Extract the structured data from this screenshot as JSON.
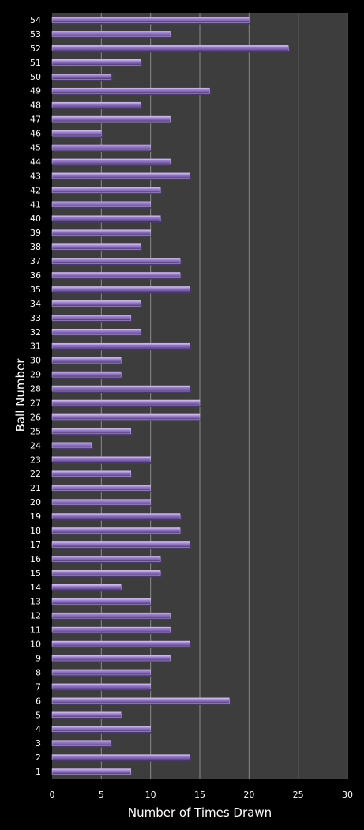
{
  "chart_data": {
    "type": "bar",
    "orientation": "horizontal",
    "title": "",
    "xlabel": "Number of Times Drawn",
    "ylabel": "Ball Number",
    "xlim": [
      0,
      30
    ],
    "xticks": [
      "0",
      "5",
      "10",
      "15",
      "20",
      "25",
      "30"
    ],
    "grid": "vertical",
    "legend": "none",
    "categories": [
      "1",
      "2",
      "3",
      "4",
      "5",
      "6",
      "7",
      "8",
      "9",
      "10",
      "11",
      "12",
      "13",
      "14",
      "15",
      "16",
      "17",
      "18",
      "19",
      "20",
      "21",
      "22",
      "23",
      "24",
      "25",
      "26",
      "27",
      "28",
      "29",
      "30",
      "31",
      "32",
      "33",
      "34",
      "35",
      "36",
      "37",
      "38",
      "39",
      "40",
      "41",
      "42",
      "43",
      "44",
      "45",
      "46",
      "47",
      "48",
      "49",
      "50",
      "51",
      "52",
      "53",
      "54"
    ],
    "values": [
      8,
      14,
      6,
      10,
      7,
      18,
      10,
      10,
      12,
      14,
      12,
      12,
      10,
      7,
      11,
      11,
      14,
      13,
      13,
      10,
      10,
      8,
      10,
      4,
      8,
      15,
      15,
      14,
      7,
      7,
      14,
      9,
      8,
      9,
      14,
      13,
      13,
      9,
      10,
      11,
      10,
      11,
      14,
      12,
      10,
      5,
      12,
      9,
      16,
      6,
      9,
      24,
      12,
      20
    ],
    "colors": {
      "page_background": "#000000",
      "plot_background": "#3d3d3d",
      "bar_fill": "#8a70b8",
      "bar_highlight": "#c8b6e6",
      "bar_shadow": "#4a3670",
      "gridline": "#8a8a8a",
      "text": "#ffffff"
    }
  }
}
